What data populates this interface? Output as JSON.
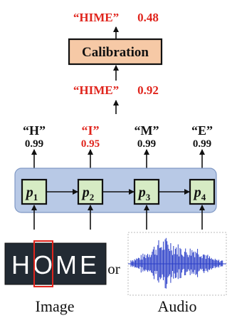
{
  "calibration": {
    "label": "Calibration",
    "output_word": "“HIME”",
    "output_score": "0.48",
    "input_word": "“HIME”",
    "input_score": "0.92"
  },
  "characters": [
    {
      "char": "“H”",
      "score": "0.99",
      "highlight": false
    },
    {
      "char": "“I”",
      "score": "0.95",
      "highlight": true
    },
    {
      "char": "“M”",
      "score": "0.99",
      "highlight": false
    },
    {
      "char": "“E”",
      "score": "0.99",
      "highlight": false
    }
  ],
  "nodes": [
    {
      "base": "p",
      "sub": "1"
    },
    {
      "base": "p",
      "sub": "2"
    },
    {
      "base": "p",
      "sub": "3"
    },
    {
      "base": "p",
      "sub": "4"
    }
  ],
  "inputs": {
    "image_text": "HOME",
    "or_label": "or",
    "image_label": "Image",
    "audio_label": "Audio"
  },
  "colors": {
    "red": "#e0241c",
    "calibration_fill": "#f6c9a6",
    "panel_fill": "#b8c9e6",
    "panel_stroke": "#7f98c4",
    "node_fill": "#d6ebc4",
    "wave": "#2a3ec8"
  }
}
